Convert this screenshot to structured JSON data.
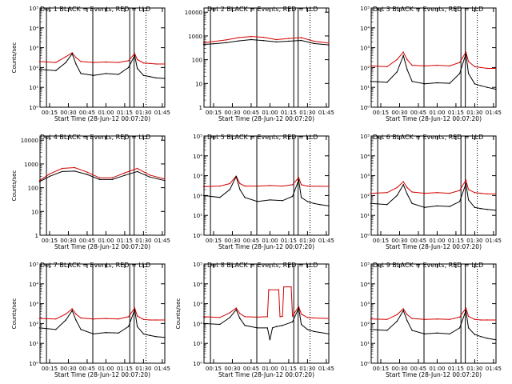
{
  "figure": {
    "ylabel": "Counts/sec",
    "xlabel": "Start Time (28-Jun-12 00:07:20)",
    "xticks": [
      "00:15",
      "00:30",
      "00:45",
      "01:00",
      "01:15",
      "01:30",
      "01:45"
    ],
    "colors": {
      "events": "#000000",
      "lld": "#d40000"
    }
  },
  "chart_data": [
    {
      "type": "line",
      "title": "Det 1  BLACK = Events, RED = LLD",
      "ylabel": "Counts/sec",
      "xlabel": "Start Time (28-Jun-12 00:07:20)",
      "yscale": "log",
      "ylim": [
        1,
        100000
      ],
      "yticks": [
        "10⁰",
        "10¹",
        "10²",
        "10³",
        "10⁴",
        "10⁵"
      ],
      "xlim": [
        "00:07:20",
        "01:47:00"
      ],
      "vlines_solid": [
        "00:12:30",
        "00:49:30",
        "01:19:00",
        "01:22:30"
      ],
      "vlines_dotted": [
        "01:32:00"
      ],
      "series": [
        {
          "name": "BLACK = Events",
          "color": "#000000",
          "x": [
            "00:07",
            "00:20",
            "00:28",
            "00:33",
            "00:36",
            "00:40",
            "00:50",
            "01:00",
            "01:10",
            "01:18",
            "01:23",
            "01:25",
            "01:30",
            "01:35",
            "01:40",
            "01:47"
          ],
          "y": [
            80,
            70,
            180,
            500,
            150,
            50,
            40,
            50,
            45,
            100,
            400,
            90,
            40,
            35,
            30,
            28
          ]
        },
        {
          "name": "RED = LLD",
          "color": "#d40000",
          "x": [
            "00:07",
            "00:20",
            "00:28",
            "00:33",
            "00:36",
            "00:40",
            "00:50",
            "01:00",
            "01:10",
            "01:18",
            "01:23",
            "01:25",
            "01:30",
            "01:35",
            "01:40",
            "01:47"
          ],
          "y": [
            200,
            180,
            350,
            550,
            320,
            200,
            180,
            190,
            180,
            220,
            500,
            250,
            170,
            160,
            150,
            150
          ]
        }
      ]
    },
    {
      "type": "line",
      "title": "Det 2  BLACK = Events, RED = LLD",
      "ylabel": "",
      "xlabel": "Start Time (28-Jun-12 00:07:20)",
      "yscale": "log",
      "ylim": [
        1,
        15000
      ],
      "yticks": [
        "1",
        "10",
        "100",
        "1000",
        "10000"
      ],
      "xlim": [
        "00:07:20",
        "01:47:00"
      ],
      "vlines_solid": [
        "00:12:30",
        "00:49:30",
        "01:19:00",
        "01:22:30"
      ],
      "vlines_dotted": [
        "01:32:00"
      ],
      "series": [
        {
          "name": "BLACK = Events",
          "color": "#000000",
          "x": [
            "00:07",
            "00:15",
            "00:25",
            "00:35",
            "00:45",
            "00:55",
            "01:05",
            "01:15",
            "01:25",
            "01:35",
            "01:47"
          ],
          "y": [
            440,
            470,
            520,
            620,
            700,
            640,
            560,
            600,
            650,
            480,
            420
          ]
        },
        {
          "name": "RED = LLD",
          "color": "#d40000",
          "x": [
            "00:07",
            "00:15",
            "00:25",
            "00:35",
            "00:45",
            "00:55",
            "01:05",
            "01:15",
            "01:25",
            "01:35",
            "01:47"
          ],
          "y": [
            520,
            580,
            680,
            850,
            950,
            880,
            700,
            780,
            850,
            600,
            500
          ]
        }
      ]
    },
    {
      "type": "line",
      "title": "Det 3  BLACK = Events, RED = LLD",
      "ylabel": "",
      "xlabel": "Start Time (28-Jun-12 00:07:20)",
      "yscale": "log",
      "ylim": [
        1,
        100000
      ],
      "yticks": [
        "10⁰",
        "10¹",
        "10²",
        "10³",
        "10⁴",
        "10⁵"
      ],
      "xlim": [
        "00:07:20",
        "01:47:00"
      ],
      "vlines_solid": [
        "00:12:30",
        "00:49:30",
        "01:19:00",
        "01:22:30"
      ],
      "vlines_dotted": [
        "01:32:00"
      ],
      "series": [
        {
          "name": "BLACK = Events",
          "color": "#000000",
          "x": [
            "00:07",
            "00:20",
            "00:28",
            "00:33",
            "00:36",
            "00:40",
            "00:50",
            "01:00",
            "01:10",
            "01:18",
            "01:23",
            "01:25",
            "01:30",
            "01:35",
            "01:40",
            "01:47"
          ],
          "y": [
            20,
            18,
            60,
            400,
            80,
            20,
            15,
            17,
            16,
            50,
            500,
            50,
            15,
            12,
            10,
            8
          ]
        },
        {
          "name": "RED = LLD",
          "color": "#d40000",
          "x": [
            "00:07",
            "00:20",
            "00:28",
            "00:33",
            "00:36",
            "00:40",
            "00:50",
            "01:00",
            "01:10",
            "01:18",
            "01:23",
            "01:25",
            "01:30",
            "01:35",
            "01:40",
            "01:47"
          ],
          "y": [
            120,
            110,
            250,
            600,
            250,
            130,
            120,
            130,
            120,
            180,
            600,
            200,
            110,
            100,
            90,
            90
          ]
        }
      ]
    },
    {
      "type": "line",
      "title": "Det 4  BLACK = Events, RED = LLD",
      "ylabel": "Counts/sec",
      "xlabel": "Start Time (28-Jun-12 00:07:20)",
      "yscale": "log",
      "ylim": [
        1,
        15000
      ],
      "yticks": [
        "1",
        "10",
        "100",
        "1000",
        "10000"
      ],
      "xlim": [
        "00:07:20",
        "01:47:00"
      ],
      "vlines_solid": [
        "00:12:30",
        "00:49:30",
        "01:19:00",
        "01:22:30"
      ],
      "vlines_dotted": [
        "01:32:00"
      ],
      "series": [
        {
          "name": "BLACK = Events",
          "color": "#000000",
          "x": [
            "00:07",
            "00:15",
            "00:25",
            "00:35",
            "00:45",
            "00:55",
            "01:05",
            "01:15",
            "01:25",
            "01:35",
            "01:47"
          ],
          "y": [
            180,
            300,
            480,
            500,
            360,
            220,
            220,
            330,
            480,
            280,
            200
          ]
        },
        {
          "name": "RED = LLD",
          "color": "#d40000",
          "x": [
            "00:07",
            "00:15",
            "00:25",
            "00:35",
            "00:45",
            "00:55",
            "01:05",
            "01:15",
            "01:25",
            "01:35",
            "01:47"
          ],
          "y": [
            200,
            380,
            650,
            700,
            450,
            260,
            260,
            420,
            650,
            340,
            230
          ]
        }
      ]
    },
    {
      "type": "line",
      "title": "Det 5  BLACK = Events, RED = LLD",
      "ylabel": "",
      "xlabel": "Start Time (28-Jun-12 00:07:20)",
      "yscale": "log",
      "ylim": [
        1,
        100000
      ],
      "yticks": [
        "10⁰",
        "10¹",
        "10²",
        "10³",
        "10⁴",
        "10⁵"
      ],
      "xlim": [
        "00:07:20",
        "01:47:00"
      ],
      "vlines_solid": [
        "00:12:30",
        "00:49:30",
        "01:19:00",
        "01:22:30"
      ],
      "vlines_dotted": [
        "01:32:00"
      ],
      "series": [
        {
          "name": "BLACK = Events",
          "color": "#000000",
          "x": [
            "00:07",
            "00:20",
            "00:28",
            "00:33",
            "00:36",
            "00:40",
            "00:50",
            "01:00",
            "01:10",
            "01:18",
            "01:23",
            "01:25",
            "01:30",
            "01:35",
            "01:40",
            "01:47"
          ],
          "y": [
            100,
            80,
            200,
            900,
            200,
            80,
            50,
            60,
            55,
            90,
            600,
            80,
            50,
            40,
            35,
            30
          ]
        },
        {
          "name": "RED = LLD",
          "color": "#d40000",
          "x": [
            "00:07",
            "00:20",
            "00:28",
            "00:33",
            "00:36",
            "00:40",
            "00:50",
            "01:00",
            "01:10",
            "01:18",
            "01:23",
            "01:25",
            "01:30",
            "01:35",
            "01:40",
            "01:47"
          ],
          "y": [
            280,
            300,
            400,
            950,
            400,
            300,
            300,
            320,
            300,
            350,
            800,
            350,
            300,
            290,
            290,
            290
          ]
        }
      ]
    },
    {
      "type": "line",
      "title": "Det 6  BLACK = Events, RED = LLD",
      "ylabel": "",
      "xlabel": "Start Time (28-Jun-12 00:07:20)",
      "yscale": "log",
      "ylim": [
        1,
        100000
      ],
      "yticks": [
        "10⁰",
        "10¹",
        "10²",
        "10³",
        "10⁴",
        "10⁵"
      ],
      "xlim": [
        "00:07:20",
        "01:47:00"
      ],
      "vlines_solid": [
        "00:12:30",
        "00:49:30",
        "01:19:00",
        "01:22:30"
      ],
      "vlines_dotted": [
        "01:32:00"
      ],
      "series": [
        {
          "name": "BLACK = Events",
          "color": "#000000",
          "x": [
            "00:07",
            "00:20",
            "00:28",
            "00:33",
            "00:36",
            "00:40",
            "00:50",
            "01:00",
            "01:10",
            "01:18",
            "01:23",
            "01:25",
            "01:30",
            "01:35",
            "01:40",
            "01:47"
          ],
          "y": [
            40,
            35,
            100,
            350,
            120,
            40,
            25,
            30,
            28,
            50,
            400,
            60,
            25,
            22,
            20,
            18
          ]
        },
        {
          "name": "RED = LLD",
          "color": "#d40000",
          "x": [
            "00:07",
            "00:20",
            "00:28",
            "00:33",
            "00:36",
            "00:40",
            "00:50",
            "01:00",
            "01:10",
            "01:18",
            "01:23",
            "01:25",
            "01:30",
            "01:35",
            "01:40",
            "01:47"
          ],
          "y": [
            130,
            140,
            250,
            500,
            250,
            150,
            130,
            140,
            130,
            180,
            600,
            200,
            140,
            130,
            120,
            120
          ]
        }
      ]
    },
    {
      "type": "line",
      "title": "Det 7  BLACK = Events, RED = LLD",
      "ylabel": "Counts/sec",
      "xlabel": "Start Time (28-Jun-12 00:07:20)",
      "yscale": "log",
      "ylim": [
        1,
        100000
      ],
      "yticks": [
        "10⁰",
        "10¹",
        "10²",
        "10³",
        "10⁴",
        "10⁵"
      ],
      "xlim": [
        "00:07:20",
        "01:47:00"
      ],
      "vlines_solid": [
        "00:12:30",
        "00:49:30",
        "01:19:00",
        "01:22:30"
      ],
      "vlines_dotted": [
        "01:32:00"
      ],
      "series": [
        {
          "name": "BLACK = Events",
          "color": "#000000",
          "x": [
            "00:07",
            "00:20",
            "00:28",
            "00:33",
            "00:36",
            "00:40",
            "00:50",
            "01:00",
            "01:10",
            "01:18",
            "01:23",
            "01:25",
            "01:30",
            "01:35",
            "01:40",
            "01:47"
          ],
          "y": [
            60,
            50,
            150,
            450,
            150,
            50,
            30,
            35,
            33,
            70,
            500,
            70,
            30,
            25,
            22,
            20
          ]
        },
        {
          "name": "RED = LLD",
          "color": "#d40000",
          "x": [
            "00:07",
            "00:20",
            "00:28",
            "00:33",
            "00:36",
            "00:40",
            "00:50",
            "01:00",
            "01:10",
            "01:18",
            "01:23",
            "01:25",
            "01:30",
            "01:35",
            "01:40",
            "01:47"
          ],
          "y": [
            180,
            170,
            300,
            550,
            300,
            190,
            170,
            180,
            170,
            220,
            600,
            240,
            160,
            150,
            150,
            150
          ]
        }
      ]
    },
    {
      "type": "line",
      "title": "Det 8  BLACK = Events, RED = LLD",
      "ylabel": "Counts/sec",
      "xlabel": "Start Time (28-Jun-12 00:07:20)",
      "yscale": "log",
      "ylim": [
        1,
        100000
      ],
      "yticks": [
        "10⁰",
        "10¹",
        "10²",
        "10³",
        "10⁴",
        "10⁵"
      ],
      "xlim": [
        "00:07:20",
        "01:47:00"
      ],
      "vlines_solid": [
        "00:12:30",
        "00:49:30",
        "01:19:00",
        "01:22:30"
      ],
      "vlines_dotted": [
        "01:32:00"
      ],
      "series": [
        {
          "name": "BLACK = Events",
          "color": "#000000",
          "x": [
            "00:07",
            "00:20",
            "00:28",
            "00:33",
            "00:36",
            "00:40",
            "00:50",
            "00:58",
            "01:00",
            "01:02",
            "01:05",
            "01:10",
            "01:18",
            "01:23",
            "01:25",
            "01:30",
            "01:35",
            "01:47"
          ],
          "y": [
            100,
            90,
            200,
            500,
            180,
            80,
            60,
            60,
            15,
            60,
            70,
            80,
            120,
            600,
            90,
            50,
            40,
            30
          ]
        },
        {
          "name": "RED = LLD",
          "color": "#d40000",
          "x": [
            "00:07",
            "00:20",
            "00:28",
            "00:33",
            "00:36",
            "00:40",
            "00:50",
            "00:58",
            "00:59",
            "01:07",
            "01:08",
            "01:10",
            "01:11",
            "01:17",
            "01:18",
            "01:23",
            "01:25",
            "01:30",
            "01:35",
            "01:47"
          ],
          "y": [
            220,
            200,
            350,
            600,
            320,
            220,
            210,
            220,
            5000,
            5000,
            220,
            230,
            7000,
            7000,
            240,
            700,
            300,
            200,
            190,
            180
          ]
        }
      ]
    },
    {
      "type": "line",
      "title": "Det 9  BLACK = Events, RED = LLD",
      "ylabel": "",
      "xlabel": "Start Time (28-Jun-12 00:07:20)",
      "yscale": "log",
      "ylim": [
        1,
        100000
      ],
      "yticks": [
        "10⁰",
        "10¹",
        "10²",
        "10³",
        "10⁴",
        "10⁵"
      ],
      "xlim": [
        "00:07:20",
        "01:47:00"
      ],
      "vlines_solid": [
        "00:12:30",
        "00:49:30",
        "01:19:00",
        "01:22:30"
      ],
      "vlines_dotted": [
        "01:32:00"
      ],
      "series": [
        {
          "name": "BLACK = Events",
          "color": "#000000",
          "x": [
            "00:07",
            "00:20",
            "00:28",
            "00:33",
            "00:36",
            "00:40",
            "00:50",
            "01:00",
            "01:10",
            "01:18",
            "01:23",
            "01:25",
            "01:30",
            "01:35",
            "01:40",
            "01:47"
          ],
          "y": [
            50,
            45,
            130,
            450,
            140,
            45,
            30,
            33,
            30,
            60,
            450,
            60,
            28,
            22,
            18,
            15
          ]
        },
        {
          "name": "RED = LLD",
          "color": "#d40000",
          "x": [
            "00:07",
            "00:20",
            "00:28",
            "00:33",
            "00:36",
            "00:40",
            "00:50",
            "01:00",
            "01:10",
            "01:18",
            "01:23",
            "01:25",
            "01:30",
            "01:35",
            "01:40",
            "01:47"
          ],
          "y": [
            170,
            160,
            280,
            550,
            280,
            180,
            160,
            170,
            160,
            210,
            600,
            230,
            160,
            150,
            150,
            150
          ]
        }
      ]
    }
  ]
}
